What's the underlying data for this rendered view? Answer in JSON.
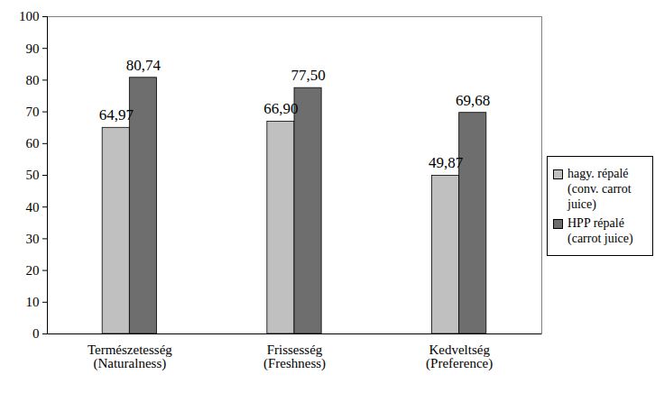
{
  "chart_data": {
    "type": "bar",
    "categories": [
      "Természetesség (Naturalness)",
      "Frissesség (Freshness)",
      "Kedveltség (Preference)"
    ],
    "series": [
      {
        "name": "hagy. répalé (conv. carrot juice)",
        "color": "#c0c0c0",
        "values": [
          64.97,
          66.9,
          49.87
        ],
        "value_labels": [
          "64,97",
          "66,90",
          "49,87"
        ]
      },
      {
        "name": "HPP répalé (carrot juice)",
        "color": "#6e6e6e",
        "values": [
          80.74,
          77.5,
          69.68
        ],
        "value_labels": [
          "80,74",
          "77,50",
          "69,68"
        ]
      }
    ],
    "ylim": [
      0,
      100
    ],
    "yticks": [
      0,
      10,
      20,
      30,
      40,
      50,
      60,
      70,
      80,
      90,
      100
    ],
    "grid": false,
    "legend": "right",
    "data_labels": true
  }
}
